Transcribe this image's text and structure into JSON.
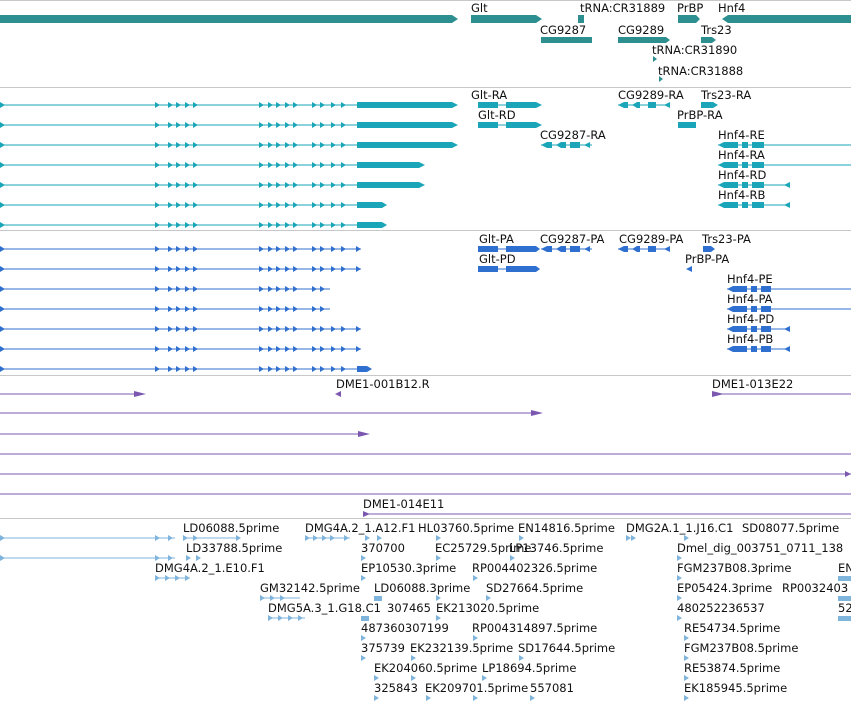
{
  "colors": {
    "gene": "#2e8f91",
    "transcript": "#1aa6b8",
    "protein": "#2f6fcf",
    "clone": "#7b57b0",
    "est": "#7fb4dc",
    "separator": "#c8c8c8"
  },
  "genes": {
    "labels": [
      "Glt",
      "tRNA:CR31889",
      "PrBP",
      "Hnf4",
      "CG9287",
      "CG9289",
      "Trs23",
      "tRNA:CR31890",
      "tRNA:CR31888"
    ]
  },
  "transcripts": {
    "labels": [
      "Glt-RA",
      "CG9289-RA",
      "Trs23-RA",
      "Glt-RD",
      "PrBP-RA",
      "CG9287-RA",
      "Hnf4-RE",
      "Hnf4-RA",
      "Hnf4-RD",
      "Hnf4-RB"
    ]
  },
  "proteins": {
    "labels": [
      "Glt-PA",
      "CG9287-PA",
      "CG9289-PA",
      "Trs23-PA",
      "Glt-PD",
      "PrBP-PA",
      "Hnf4-PE",
      "Hnf4-PA",
      "Hnf4-PD",
      "Hnf4-PB"
    ]
  },
  "clones": {
    "labels": [
      "DME1-001B12.R",
      "DME1-013E22",
      "DME1-014E11"
    ]
  },
  "ests": {
    "labels": [
      "LD06088.5prime",
      "DMG4A.2_1.A12.F1",
      "HL03760.5prime",
      "EN14816.5prime",
      "DMG2A.1_1.J16.C1",
      "SD08077.5prime",
      "LD33788.5prime",
      "370700",
      "EC25729.5prime",
      "LP13746.5prime",
      "Dmel_dig_003751_0711_138",
      "DMG4A.2_1.E10.F1",
      "EP10530.3prime",
      "RP004402326.5prime",
      "FGM237B08.3prime",
      "GM32142.5prime",
      "LD06088.3prime",
      "SD27664.5prime",
      "EP05424.3prime",
      "RP0032403",
      "DMG5A.3_1.G18.C1",
      "307465",
      "EK213020.5prime",
      "480252236537",
      "487360307199",
      "RP004314897.5prime",
      "RE54734.5prime",
      "375739",
      "EK232139.5prime",
      "SD17644.5prime",
      "FGM237B08.5prime",
      "EK204060.5prime",
      "LP18694.5prime",
      "RE53874.5prime",
      "325843",
      "EK209701.5prime",
      "557081",
      "EK185945.5prime",
      "EN",
      "52"
    ]
  }
}
